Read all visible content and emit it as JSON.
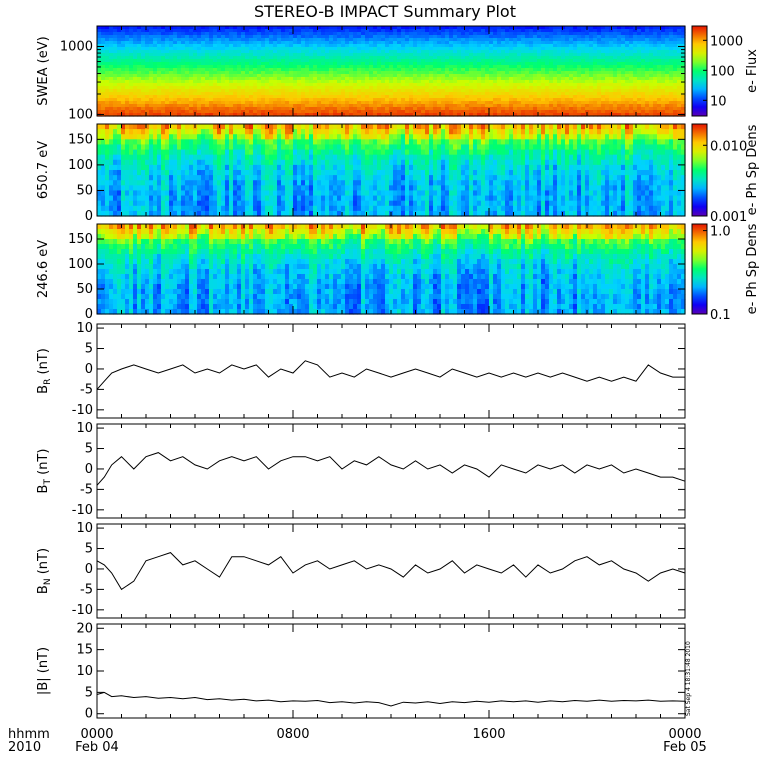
{
  "title": "STEREO-B IMPACT Summary Plot",
  "stamp": "Sat Sep  4 18:31:48 2010",
  "x_axis": {
    "row1_label": "hhmm",
    "row2_label": "2010",
    "ticks": [
      {
        "hour": 0,
        "label": "0000",
        "date": "Feb 04"
      },
      {
        "hour": 8,
        "label": "0800",
        "date": ""
      },
      {
        "hour": 16,
        "label": "1600",
        "date": ""
      },
      {
        "hour": 24,
        "label": "0000",
        "date": "Feb 05"
      }
    ],
    "range_hours": [
      0,
      24
    ]
  },
  "chart_data": [
    {
      "type": "heatmap",
      "ylabel": "SWEA (eV)",
      "yscale": "log",
      "ylim": [
        95,
        2000
      ],
      "yticks": [
        100,
        1000
      ],
      "ytick_labels": [
        "100",
        "1000"
      ],
      "colorbar": {
        "label": "e- Flux",
        "scale": "log",
        "range": [
          3,
          3000
        ],
        "ticks": [
          10,
          100,
          1000
        ],
        "tick_labels": [
          "10",
          "100",
          "1000"
        ]
      },
      "description_levels": {
        "energy_eV": [
          100,
          150,
          200,
          300,
          500,
          800,
          1200,
          2000
        ],
        "log_flux": [
          3.4,
          3.5,
          3.1,
          2.7,
          2.3,
          1.8,
          1.3,
          0.8
        ]
      }
    },
    {
      "type": "heatmap",
      "ylabel": "650.7 eV",
      "ylim": [
        0,
        180
      ],
      "yticks": [
        0,
        50,
        100,
        150
      ],
      "ytick_labels": [
        "0",
        "50",
        "100",
        "150"
      ],
      "colorbar": {
        "label": "e- Ph Sp Dens",
        "scale": "log",
        "range": [
          0.001,
          0.02
        ],
        "ticks": [
          0.001,
          0.01
        ],
        "tick_labels": [
          "0.001",
          "0.010"
        ]
      }
    },
    {
      "type": "heatmap",
      "ylabel": "246.6 eV",
      "ylim": [
        0,
        180
      ],
      "yticks": [
        0,
        50,
        100,
        150
      ],
      "ytick_labels": [
        "0",
        "50",
        "100",
        "150"
      ],
      "colorbar": {
        "label": "e- Ph Sp Dens",
        "scale": "log",
        "range": [
          0.1,
          1.2
        ],
        "ticks": [
          0.1,
          1.0
        ],
        "tick_labels": [
          "0.1",
          "1.0"
        ]
      }
    },
    {
      "type": "line",
      "ylabel_main": "B",
      "ylabel_sub": "R",
      "ylabel_unit": " (nT)",
      "ylim": [
        -12,
        11
      ],
      "yticks": [
        -10,
        -5,
        0,
        5,
        10
      ],
      "ytick_labels": [
        "-10",
        "-5",
        "0",
        "5",
        "10"
      ],
      "x_hours": [
        0,
        0.3,
        0.6,
        1,
        1.5,
        2,
        2.5,
        3,
        3.5,
        4,
        4.5,
        5,
        5.5,
        6,
        6.5,
        7,
        7.5,
        8,
        8.5,
        9,
        9.5,
        10,
        10.5,
        11,
        11.5,
        12,
        12.5,
        13,
        13.5,
        14,
        14.5,
        15,
        15.5,
        16,
        16.5,
        17,
        17.5,
        18,
        18.5,
        19,
        19.5,
        20,
        20.5,
        21,
        21.5,
        22,
        22.5,
        23,
        23.5,
        24
      ],
      "values": [
        -5,
        -3,
        -1,
        0,
        1,
        0,
        -1,
        0,
        1,
        -1,
        0,
        -1,
        1,
        0,
        1,
        -2,
        0,
        -1,
        2,
        1,
        -2,
        -1,
        -2,
        0,
        -1,
        -2,
        -1,
        0,
        -1,
        -2,
        0,
        -1,
        -2,
        -1,
        -2,
        -1,
        -2,
        -1,
        -2,
        -1,
        -2,
        -3,
        -2,
        -3,
        -2,
        -3,
        1,
        -1,
        -2,
        -2
      ]
    },
    {
      "type": "line",
      "ylabel_main": "B",
      "ylabel_sub": "T",
      "ylabel_unit": " (nT)",
      "ylim": [
        -12,
        11
      ],
      "yticks": [
        -10,
        -5,
        0,
        5,
        10
      ],
      "ytick_labels": [
        "-10",
        "-5",
        "0",
        "5",
        "10"
      ],
      "x_hours": [
        0,
        0.3,
        0.6,
        1,
        1.5,
        2,
        2.5,
        3,
        3.5,
        4,
        4.5,
        5,
        5.5,
        6,
        6.5,
        7,
        7.5,
        8,
        8.5,
        9,
        9.5,
        10,
        10.5,
        11,
        11.5,
        12,
        12.5,
        13,
        13.5,
        14,
        14.5,
        15,
        15.5,
        16,
        16.5,
        17,
        17.5,
        18,
        18.5,
        19,
        19.5,
        20,
        20.5,
        21,
        21.5,
        22,
        22.5,
        23,
        23.5,
        24
      ],
      "values": [
        -4,
        -2,
        1,
        3,
        0,
        3,
        4,
        2,
        3,
        1,
        0,
        2,
        3,
        2,
        3,
        0,
        2,
        3,
        3,
        2,
        3,
        0,
        2,
        1,
        3,
        1,
        0,
        2,
        0,
        1,
        -1,
        1,
        0,
        -2,
        1,
        0,
        -1,
        1,
        0,
        1,
        -1,
        1,
        0,
        1,
        -1,
        0,
        -1,
        -2,
        -2,
        -3
      ]
    },
    {
      "type": "line",
      "ylabel_main": "B",
      "ylabel_sub": "N",
      "ylabel_unit": " (nT)",
      "ylim": [
        -12,
        11
      ],
      "yticks": [
        -10,
        -5,
        0,
        5,
        10
      ],
      "ytick_labels": [
        "-10",
        "-5",
        "0",
        "5",
        "10"
      ],
      "x_hours": [
        0,
        0.3,
        0.6,
        1,
        1.5,
        2,
        2.5,
        3,
        3.5,
        4,
        4.5,
        5,
        5.5,
        6,
        6.5,
        7,
        7.5,
        8,
        8.5,
        9,
        9.5,
        10,
        10.5,
        11,
        11.5,
        12,
        12.5,
        13,
        13.5,
        14,
        14.5,
        15,
        15.5,
        16,
        16.5,
        17,
        17.5,
        18,
        18.5,
        19,
        19.5,
        20,
        20.5,
        21,
        21.5,
        22,
        22.5,
        23,
        23.5,
        24
      ],
      "values": [
        2,
        1,
        -1,
        -5,
        -3,
        2,
        3,
        4,
        1,
        2,
        0,
        -2,
        3,
        3,
        2,
        1,
        3,
        -1,
        1,
        2,
        0,
        1,
        2,
        0,
        1,
        0,
        -2,
        1,
        -1,
        0,
        2,
        -1,
        1,
        0,
        -1,
        1,
        -2,
        1,
        -1,
        0,
        2,
        3,
        1,
        2,
        0,
        -1,
        -3,
        -1,
        0,
        -1
      ]
    },
    {
      "type": "line",
      "ylabel": "|B| (nT)",
      "ylim": [
        -1,
        21
      ],
      "yticks": [
        0,
        5,
        10,
        15,
        20
      ],
      "ytick_labels": [
        "0",
        "5",
        "10",
        "15",
        "20"
      ],
      "x_hours": [
        0,
        0.3,
        0.6,
        1,
        1.5,
        2,
        2.5,
        3,
        3.5,
        4,
        4.5,
        5,
        5.5,
        6,
        6.5,
        7,
        7.5,
        8,
        8.5,
        9,
        9.5,
        10,
        10.5,
        11,
        11.5,
        12,
        12.5,
        13,
        13.5,
        14,
        14.5,
        15,
        15.5,
        16,
        16.5,
        17,
        17.5,
        18,
        18.5,
        19,
        19.5,
        20,
        20.5,
        21,
        21.5,
        22,
        22.5,
        23,
        23.5,
        24
      ],
      "values": [
        4.5,
        5,
        4,
        4.2,
        3.8,
        4,
        3.6,
        3.8,
        3.5,
        3.8,
        3.3,
        3.5,
        3.2,
        3.4,
        3.0,
        3.2,
        2.8,
        3.0,
        2.9,
        3.1,
        2.6,
        2.8,
        2.5,
        2.8,
        2.6,
        1.8,
        2.7,
        2.5,
        2.8,
        2.4,
        2.8,
        2.6,
        2.9,
        2.7,
        3.0,
        2.8,
        3.0,
        2.7,
        3.0,
        2.8,
        3.1,
        2.9,
        3.2,
        2.9,
        3.1,
        3.0,
        3.2,
        2.9,
        3.0,
        2.9
      ]
    }
  ]
}
